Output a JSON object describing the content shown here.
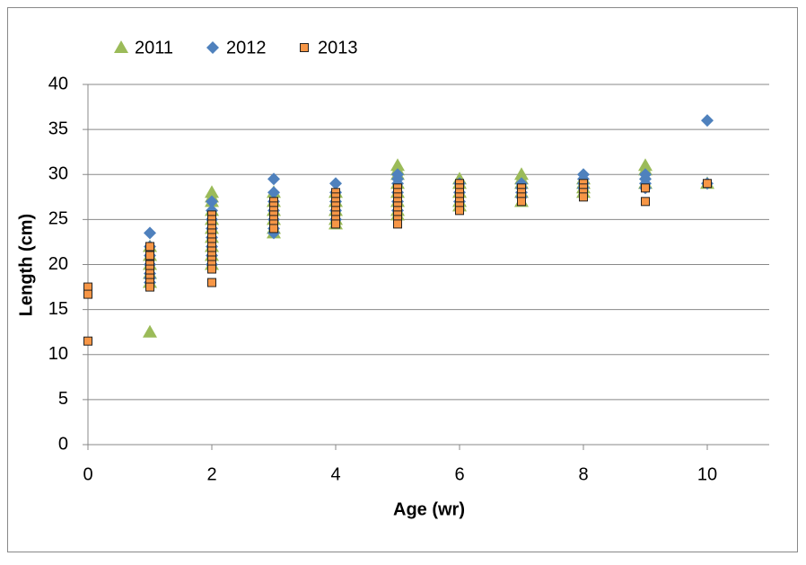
{
  "chart_data": {
    "type": "scatter",
    "x_label": "Age (wr)",
    "y_label": "Length (cm)",
    "xlim": [
      0,
      11
    ],
    "xticks": [
      0,
      2,
      4,
      6,
      8,
      10
    ],
    "ylim": [
      0,
      40
    ],
    "yticks": [
      0,
      5,
      10,
      15,
      20,
      25,
      30,
      35,
      40
    ],
    "grid": true,
    "legend": "top-left",
    "series": [
      {
        "name": "2011",
        "color": "#9bbb59",
        "marker": "triangle",
        "x": [
          1,
          1,
          1,
          1,
          1,
          1,
          2,
          2,
          2,
          2,
          2,
          2,
          2,
          2,
          2,
          2,
          3,
          3,
          3,
          3,
          3,
          3,
          4,
          4,
          4,
          4,
          4,
          5,
          5,
          5,
          5,
          5,
          5,
          5,
          5,
          6,
          6,
          6,
          6,
          6,
          7,
          7,
          7,
          7,
          7,
          8,
          8,
          8,
          8,
          9,
          9,
          9,
          10
        ],
        "values": [
          12.5,
          18,
          19,
          20,
          21,
          22,
          28,
          27.5,
          27,
          26,
          25,
          24,
          23,
          22,
          21,
          20,
          23.5,
          24,
          25,
          26,
          27,
          28,
          24.5,
          25,
          26,
          27,
          28,
          31,
          30.5,
          30,
          29,
          28,
          27,
          26,
          25.5,
          29.5,
          29,
          28,
          27,
          26.5,
          30,
          29.5,
          29,
          28,
          27,
          29.5,
          29,
          28.5,
          28,
          31,
          30.5,
          29,
          29
        ]
      },
      {
        "name": "2012",
        "color": "#4f81bd",
        "marker": "diamond",
        "x": [
          1,
          1,
          1,
          1,
          1,
          1,
          1,
          2,
          2,
          2,
          2,
          2,
          2,
          2,
          2,
          3,
          3,
          3,
          3,
          3,
          3,
          3,
          4,
          4,
          4,
          4,
          4,
          5,
          5,
          5,
          5,
          5,
          5,
          6,
          6,
          6,
          7,
          7,
          7,
          7,
          8,
          8,
          8,
          8,
          9,
          9,
          9,
          9,
          10,
          10
        ],
        "values": [
          23.5,
          22,
          21,
          20,
          19,
          18.5,
          18,
          27,
          26,
          25,
          24,
          23,
          22,
          21,
          20,
          29.5,
          28,
          27,
          26,
          25,
          24,
          23.5,
          29,
          28,
          27,
          26,
          25,
          30,
          29.5,
          29,
          28,
          27,
          26,
          29,
          28,
          27,
          29,
          28.5,
          28,
          27.5,
          30,
          29.5,
          29,
          28.5,
          30,
          29.5,
          29,
          28.5,
          36,
          29
        ]
      },
      {
        "name": "2013",
        "color": "#f79646",
        "marker": "square",
        "x": [
          0,
          0,
          0,
          1,
          1,
          1,
          1,
          1,
          1,
          1,
          1,
          2,
          2,
          2,
          2,
          2,
          2,
          2,
          2,
          2,
          2,
          2,
          2,
          2,
          2,
          3,
          3,
          3,
          3,
          3,
          3,
          3,
          4,
          4,
          4,
          4,
          4,
          4,
          4,
          4,
          5,
          5,
          5,
          5,
          5,
          5,
          5,
          5,
          5,
          6,
          6,
          6,
          6,
          6,
          6,
          6,
          7,
          7,
          7,
          7,
          8,
          8,
          8,
          8,
          9,
          9,
          10
        ],
        "values": [
          17.5,
          16.7,
          11.5,
          22,
          21,
          20,
          19.5,
          19,
          18.5,
          18,
          17.5,
          25.5,
          25,
          24.5,
          24,
          23.5,
          23,
          22.5,
          22,
          21.5,
          21,
          20.5,
          20,
          19.5,
          18,
          27,
          26.5,
          26,
          25.5,
          25,
          24.5,
          24,
          28,
          27.5,
          27,
          26.5,
          26,
          25.5,
          25,
          24.5,
          28.5,
          28,
          27.5,
          27,
          26.5,
          26,
          25.5,
          25,
          24.5,
          29,
          28.5,
          28,
          27.5,
          27,
          26.5,
          26,
          28.5,
          28,
          27.5,
          27,
          29,
          28.5,
          28,
          27.5,
          28.5,
          27,
          29
        ]
      }
    ]
  }
}
